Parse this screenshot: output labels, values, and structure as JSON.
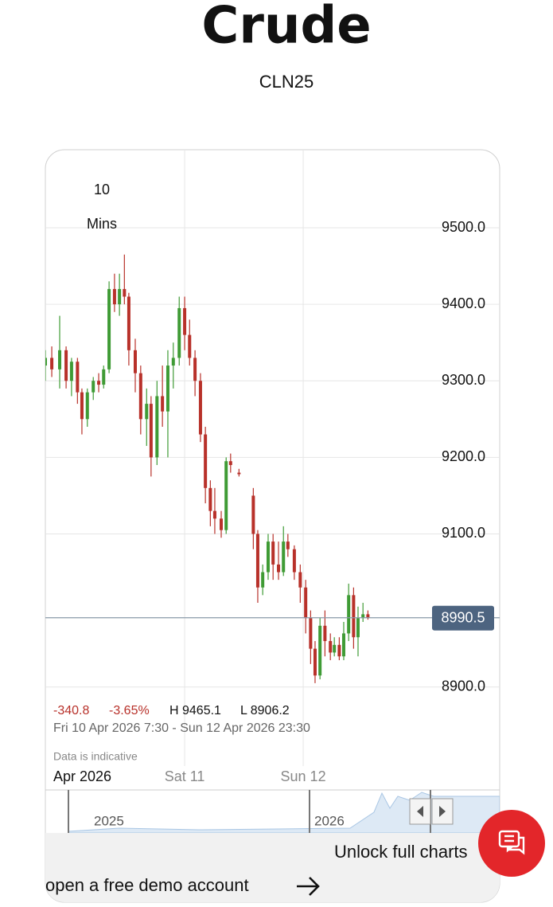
{
  "header": {
    "title": "Crude",
    "subtitle": "CLN25"
  },
  "chart_data": {
    "type": "candlestick",
    "interval": {
      "value": "10",
      "unit": "Mins"
    },
    "x": [
      -4.2,
      -2.9,
      -1.3,
      0,
      1.1,
      2.3,
      3.2,
      4.3,
      5.5,
      6.6,
      7.6,
      8.7,
      9.8,
      10.8,
      11.8,
      12.7,
      14.0,
      15.1,
      16.3,
      17.2,
      18.4,
      19.5,
      20.6,
      21.7,
      22.9,
      24.0,
      25.0,
      26.1,
      27.2,
      28.2,
      29.2,
      30.1,
      31.4,
      32.4,
      33.3,
      35.0,
      37.9,
      38.8,
      39.8,
      40.9,
      41.9,
      43.0,
      44.0,
      44.9,
      46.2,
      47.4,
      48.5,
      49.5,
      50.4,
      51.4,
      52.4,
      53.5,
      54.3,
      55.3,
      56.2,
      57.2,
      58.2,
      59.1,
      60.1,
      61.1
    ],
    "open": [
      9320,
      9330,
      9315,
      9340,
      9300,
      9325,
      9285,
      9250,
      9285,
      9300,
      9295,
      9315,
      9420,
      9400,
      9420,
      9410,
      9340,
      9310,
      9250,
      9270,
      9200,
      9280,
      9260,
      9320,
      9330,
      9395,
      9360,
      9330,
      9300,
      9230,
      9160,
      9130,
      9120,
      9105,
      9195,
      9180,
      9150,
      9100,
      9030,
      9050,
      9090,
      9060,
      9050,
      9090,
      9080,
      9050,
      9030,
      8990,
      8950,
      8915,
      8980,
      8960,
      8945,
      8955,
      8940,
      8970,
      9020,
      8965,
      8990,
      8995
    ],
    "high": [
      9340,
      9345,
      9385,
      9345,
      9330,
      9330,
      9290,
      9290,
      9305,
      9310,
      9320,
      9430,
      9440,
      9440,
      9465,
      9415,
      9355,
      9320,
      9290,
      9280,
      9300,
      9320,
      9340,
      9350,
      9410,
      9410,
      9380,
      9340,
      9310,
      9240,
      9170,
      9160,
      9130,
      9200,
      9205,
      9185,
      9160,
      9105,
      9060,
      9100,
      9100,
      9090,
      9110,
      9100,
      9085,
      9060,
      9040,
      9000,
      8960,
      8990,
      9000,
      8970,
      8965,
      8965,
      8985,
      9035,
      9030,
      9005,
      9010,
      9000
    ],
    "low": [
      9300,
      9305,
      9290,
      9290,
      9280,
      9270,
      9230,
      9240,
      9275,
      9285,
      9290,
      9310,
      9390,
      9385,
      9400,
      9320,
      9285,
      9230,
      9215,
      9175,
      9190,
      9240,
      9200,
      9290,
      9320,
      9340,
      9320,
      9280,
      9220,
      9140,
      9110,
      9100,
      9095,
      9100,
      9180,
      9175,
      9080,
      9010,
      9020,
      9040,
      9040,
      9040,
      9045,
      9070,
      9040,
      9010,
      8970,
      8930,
      8905,
      8910,
      8940,
      8935,
      8940,
      8935,
      8935,
      8960,
      8950,
      8940,
      8985,
      8988
    ],
    "close": [
      9330,
      9315,
      9340,
      9300,
      9325,
      9285,
      9250,
      9285,
      9300,
      9295,
      9315,
      9420,
      9400,
      9420,
      9410,
      9340,
      9310,
      9250,
      9270,
      9200,
      9280,
      9260,
      9320,
      9330,
      9395,
      9360,
      9330,
      9300,
      9230,
      9160,
      9130,
      9120,
      9105,
      9195,
      9190,
      9178,
      9100,
      9030,
      9050,
      9090,
      9060,
      9050,
      9090,
      9080,
      9050,
      9030,
      8990,
      8950,
      8915,
      8980,
      8960,
      8945,
      8955,
      8940,
      8970,
      9020,
      8965,
      8990,
      8995,
      8990.5
    ],
    "up_color": "#3f9b35",
    "down_color": "#b8312a",
    "xlim": [
      -4.2,
      73.6
    ],
    "xticks": [
      {
        "value": 24,
        "label": "Sat 11"
      },
      {
        "value": 48,
        "label": "Sun 12"
      }
    ],
    "x_period": "Apr 2026",
    "ylim": [
      8882,
      9602
    ],
    "yticks": [
      {
        "value": 8900,
        "label": "8900.0"
      },
      {
        "value": 9100,
        "label": "9100.0"
      },
      {
        "value": 9200,
        "label": "9200.0"
      },
      {
        "value": 9300,
        "label": "9300.0"
      },
      {
        "value": 9400,
        "label": "9400.0"
      },
      {
        "value": 9500,
        "label": "9500.0"
      }
    ],
    "grid": true,
    "last_price": 8990.5,
    "last_price_color": "#4d6480"
  },
  "stats": {
    "change": "-340.8",
    "change_pct": "-3.65%",
    "high": "H 9465.1",
    "low": "L 8906.2",
    "range": "Fri 10 Apr 2026 7:30 - Sun 12 Apr 2026 23:30",
    "note": "Data is indicative"
  },
  "navigator": {
    "labels": [
      "2025",
      "2026"
    ]
  },
  "cta": {
    "banner": "Unlock full charts",
    "link": "open a free demo account"
  }
}
